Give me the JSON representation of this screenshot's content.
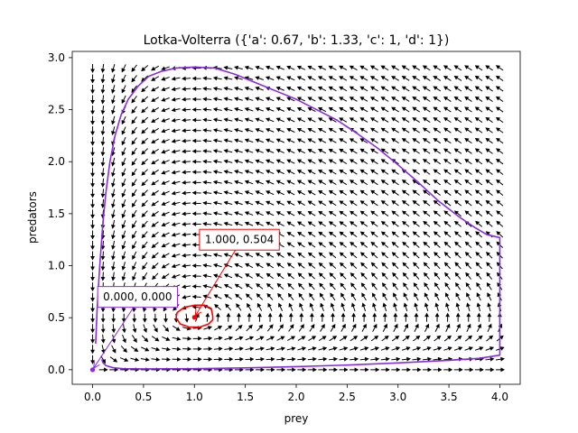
{
  "chart_data": {
    "type": "line",
    "title": "Lotka-Volterra ({'a': 0.67, 'b': 1.33, 'c': 1, 'd': 1})",
    "xlabel": "prey",
    "ylabel": "predators",
    "xlim": [
      -0.2,
      4.2
    ],
    "ylim": [
      -0.14,
      3.06
    ],
    "x_ticks": [
      0.0,
      0.5,
      1.0,
      1.5,
      2.0,
      2.5,
      3.0,
      3.5,
      4.0
    ],
    "x_tick_labels": [
      "0.0",
      "0.5",
      "1.0",
      "1.5",
      "2.0",
      "2.5",
      "3.0",
      "3.5",
      "4.0"
    ],
    "y_ticks": [
      0.0,
      0.5,
      1.0,
      1.5,
      2.0,
      2.5,
      3.0
    ],
    "y_tick_labels": [
      "0.0",
      "0.5",
      "1.0",
      "1.5",
      "2.0",
      "2.5",
      "3.0"
    ],
    "grid": false,
    "parameters": {
      "a": 0.67,
      "b": 1.33,
      "c": 1,
      "d": 1
    },
    "vector_field": {
      "x_range": [
        0.0,
        4.0
      ],
      "y_range": [
        0.0,
        2.9
      ],
      "nx": 40,
      "ny": 30,
      "color": "#000000"
    },
    "series": [
      {
        "type": "trajectory",
        "color": "#8a2be2",
        "points": [
          [
            0.03,
            0.25
          ],
          [
            0.045,
            0.6
          ],
          [
            0.07,
            1.0
          ],
          [
            0.1,
            1.4
          ],
          [
            0.13,
            1.7
          ],
          [
            0.17,
            2.0
          ],
          [
            0.22,
            2.25
          ],
          [
            0.28,
            2.45
          ],
          [
            0.35,
            2.6
          ],
          [
            0.45,
            2.73
          ],
          [
            0.55,
            2.82
          ],
          [
            0.68,
            2.87
          ],
          [
            0.82,
            2.9
          ],
          [
            1.0,
            2.91
          ],
          [
            1.2,
            2.9
          ],
          [
            1.4,
            2.84
          ],
          [
            1.6,
            2.76
          ],
          [
            1.8,
            2.68
          ],
          [
            2.0,
            2.6
          ],
          [
            2.2,
            2.5
          ],
          [
            2.4,
            2.4
          ],
          [
            2.6,
            2.27
          ],
          [
            2.8,
            2.13
          ],
          [
            3.0,
            1.97
          ],
          [
            3.2,
            1.8
          ],
          [
            3.4,
            1.62
          ],
          [
            3.6,
            1.47
          ],
          [
            3.75,
            1.37
          ],
          [
            3.87,
            1.3
          ],
          [
            4.0,
            1.27
          ],
          [
            4.0,
            0.14
          ],
          [
            3.8,
            0.11
          ],
          [
            3.5,
            0.09
          ],
          [
            3.0,
            0.065
          ],
          [
            2.5,
            0.045
          ],
          [
            2.0,
            0.03
          ],
          [
            1.5,
            0.018
          ],
          [
            1.0,
            0.01
          ],
          [
            0.5,
            0.008
          ],
          [
            0.3,
            0.01
          ],
          [
            0.2,
            0.02
          ],
          [
            0.13,
            0.04
          ],
          [
            0.1,
            0.07
          ],
          [
            0.09,
            0.1
          ]
        ]
      },
      {
        "type": "trajectory",
        "color": "#ff0000",
        "points": [
          [
            1.18,
            0.515
          ],
          [
            1.165,
            0.59
          ],
          [
            1.1,
            0.62
          ],
          [
            1.0,
            0.62
          ],
          [
            0.9,
            0.6
          ],
          [
            0.83,
            0.55
          ],
          [
            0.82,
            0.5
          ],
          [
            0.86,
            0.44
          ],
          [
            0.95,
            0.41
          ],
          [
            1.05,
            0.41
          ],
          [
            1.14,
            0.44
          ],
          [
            1.18,
            0.48
          ],
          [
            1.18,
            0.515
          ]
        ]
      }
    ],
    "points": [
      {
        "x": 0.0,
        "y": 0.0,
        "color": "#8a2be2"
      },
      {
        "x": 1.0,
        "y": 0.504,
        "color": "#ff0000"
      }
    ],
    "annotations": [
      {
        "text": "0.000, 0.000",
        "color": "#8a2be2",
        "point": [
          0.0,
          0.0
        ],
        "text_at": [
          0.05,
          0.7
        ]
      },
      {
        "text": "1.000, 0.504",
        "color": "#ff0000",
        "point": [
          1.0,
          0.504
        ],
        "text_at": [
          1.05,
          1.25
        ]
      }
    ]
  }
}
